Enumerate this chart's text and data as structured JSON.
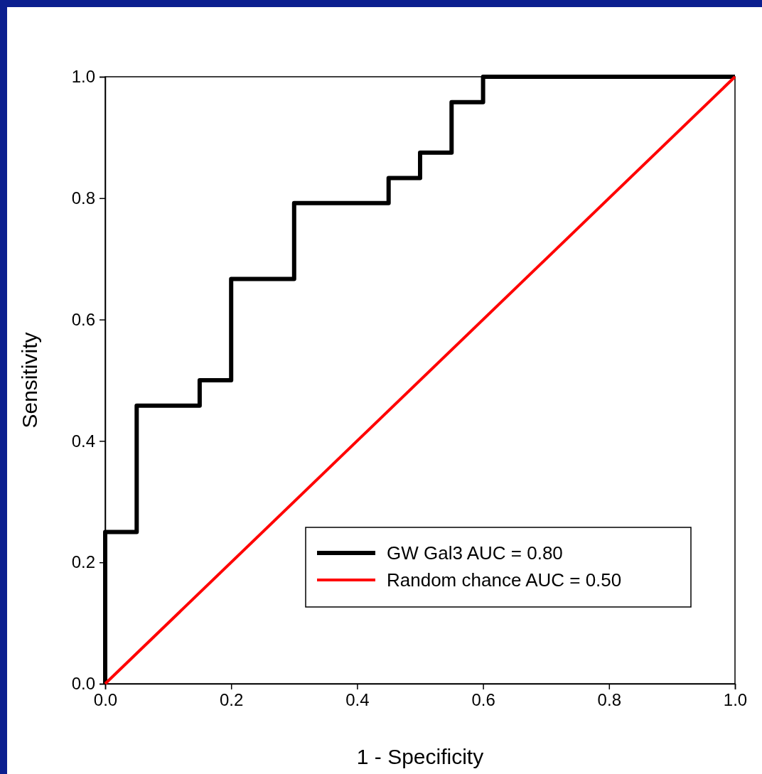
{
  "chart_data": {
    "type": "step",
    "xlabel": "1 - Specificity",
    "ylabel": "Sensitivity",
    "xlim": [
      0,
      1
    ],
    "ylim": [
      0,
      1
    ],
    "xticks": [
      {
        "value": 0,
        "label": "0.0"
      },
      {
        "value": 0.2,
        "label": "0.2"
      },
      {
        "value": 0.4,
        "label": "0.4"
      },
      {
        "value": 0.6,
        "label": "0.6"
      },
      {
        "value": 0.8,
        "label": "0.8"
      },
      {
        "value": 1,
        "label": "1.0"
      }
    ],
    "yticks": [
      {
        "value": 0,
        "label": "0.0"
      },
      {
        "value": 0.2,
        "label": "0.2"
      },
      {
        "value": 0.4,
        "label": "0.4"
      },
      {
        "value": 0.6,
        "label": "0.6"
      },
      {
        "value": 0.8,
        "label": "0.8"
      },
      {
        "value": 1,
        "label": "1.0"
      }
    ],
    "grid": false,
    "legend": "bottom right",
    "marker": "none",
    "line_style": "solid",
    "series": [
      {
        "name": "GW Gal3 AUC = 0.80",
        "color": "#000000",
        "x": [
          0,
          0,
          0.05,
          0.15,
          0.2,
          0.3,
          0.45,
          0.5,
          0.55,
          0.6,
          1.0
        ],
        "values": [
          0,
          0.25,
          0.458,
          0.5,
          0.667,
          0.792,
          0.833,
          0.875,
          0.958,
          1.0,
          1.0
        ]
      },
      {
        "name": "Random chance AUC = 0.50",
        "type": "line",
        "color": "#ff0000",
        "x": [
          0,
          1
        ],
        "values": [
          0,
          1
        ]
      }
    ]
  }
}
